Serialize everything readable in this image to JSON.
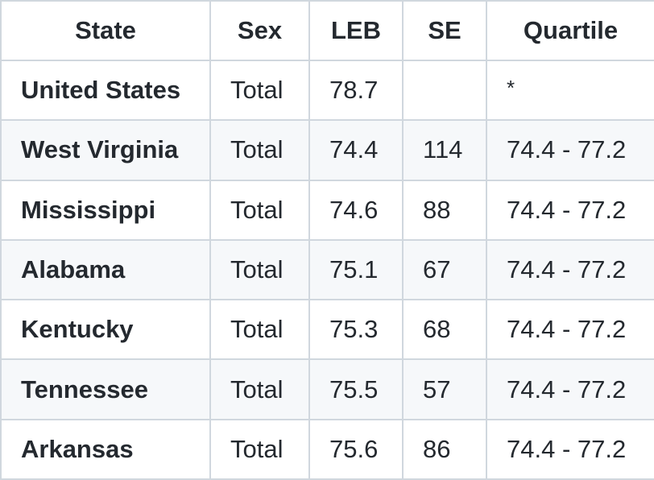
{
  "table": {
    "headers": [
      "State",
      "Sex",
      "LEB",
      "SE",
      "Quartile"
    ],
    "rows": [
      {
        "state": "United States",
        "sex": "Total",
        "leb": "78.7",
        "se": "",
        "quartile": "*"
      },
      {
        "state": "West Virginia",
        "sex": "Total",
        "leb": "74.4",
        "se": "114",
        "quartile": "74.4 - 77.2"
      },
      {
        "state": "Mississippi",
        "sex": "Total",
        "leb": "74.6",
        "se": "88",
        "quartile": "74.4 - 77.2"
      },
      {
        "state": "Alabama",
        "sex": "Total",
        "leb": "75.1",
        "se": "67",
        "quartile": "74.4 - 77.2"
      },
      {
        "state": "Kentucky",
        "sex": "Total",
        "leb": "75.3",
        "se": "68",
        "quartile": "74.4 - 77.2"
      },
      {
        "state": "Tennessee",
        "sex": "Total",
        "leb": "75.5",
        "se": "57",
        "quartile": "74.4 - 77.2"
      },
      {
        "state": "Arkansas",
        "sex": "Total",
        "leb": "75.6",
        "se": "86",
        "quartile": "74.4 - 77.2"
      }
    ]
  },
  "colors": {
    "border": "#d0d7de",
    "stripe": "#f6f8fa",
    "text": "#24292f"
  }
}
